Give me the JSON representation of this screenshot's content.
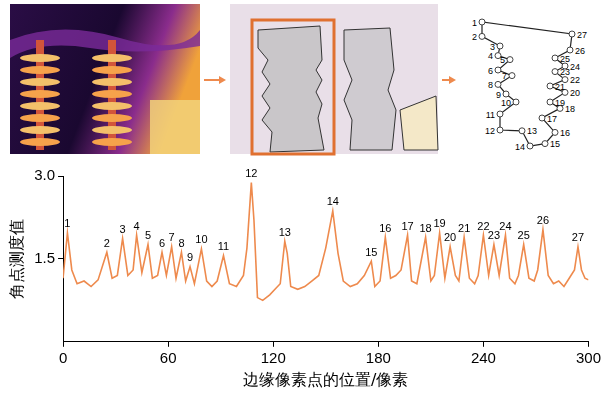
{
  "chart_data": {
    "type": "line",
    "x_label": "边缘像素点的位置/像素",
    "y_label": "角点测度值",
    "color": "#ee8a4d",
    "grid": false,
    "xlim": [
      0,
      300
    ],
    "xticks": [
      0,
      60,
      120,
      180,
      240,
      300
    ],
    "ylim": [
      0,
      3
    ],
    "yticks": [
      1.5,
      {
        "value": 3,
        "label": "3.0"
      }
    ],
    "x": [
      0,
      2.5,
      5,
      8,
      12,
      16,
      20,
      25,
      28,
      31,
      34,
      37,
      40,
      42,
      45,
      48.5,
      51,
      54,
      56.5,
      59,
      62,
      64.5,
      67.6,
      70,
      72.5,
      75,
      79,
      82,
      85,
      88,
      91.6,
      95,
      99,
      103,
      105,
      107.5,
      109,
      111,
      114,
      118,
      121,
      124,
      126.6,
      128,
      130,
      134,
      138,
      142,
      146,
      150,
      154,
      157,
      160,
      164,
      168,
      172,
      176,
      178,
      181,
      184,
      187,
      190,
      193,
      196.7,
      199,
      202,
      207,
      210,
      212,
      215,
      218,
      221,
      224,
      226,
      229,
      232,
      235,
      237,
      240,
      243,
      246,
      249,
      252.6,
      255,
      258,
      260,
      263,
      266,
      269,
      271,
      274,
      277,
      280,
      283,
      286,
      289,
      292,
      294,
      296,
      298,
      300
    ],
    "values": [
      1.15,
      1.97,
      1.3,
      1.05,
      1.1,
      1.0,
      1.12,
      1.62,
      1.15,
      1.2,
      1.87,
      1.2,
      1.3,
      1.93,
      1.25,
      1.76,
      1.15,
      1.2,
      1.62,
      1.2,
      1.72,
      1.15,
      1.62,
      1.1,
      1.36,
      1.05,
      1.68,
      1.1,
      1.0,
      1.1,
      1.56,
      1.05,
      1.0,
      1.2,
      1.7,
      2.88,
      2.2,
      0.8,
      0.75,
      0.85,
      0.95,
      1.05,
      1.82,
      1.6,
      1.0,
      0.95,
      1.0,
      1.1,
      1.2,
      1.7,
      2.37,
      1.6,
      1.1,
      1.0,
      1.05,
      1.2,
      1.46,
      1.0,
      1.1,
      1.89,
      1.15,
      1.2,
      1.3,
      1.93,
      1.1,
      1.05,
      1.89,
      1.1,
      1.2,
      1.97,
      1.15,
      1.72,
      1.2,
      1.1,
      1.89,
      1.15,
      1.05,
      1.2,
      1.93,
      1.2,
      1.76,
      1.2,
      1.93,
      1.15,
      1.05,
      1.2,
      1.76,
      1.15,
      1.1,
      1.3,
      2.03,
      1.2,
      1.05,
      1.1,
      1.0,
      1.15,
      1.3,
      1.72,
      1.3,
      1.15,
      1.12
    ],
    "annotations": [
      {
        "text": "1",
        "x": 2.5,
        "y": 1.97
      },
      {
        "text": "2",
        "x": 25,
        "y": 1.62
      },
      {
        "text": "3",
        "x": 34,
        "y": 1.87
      },
      {
        "text": "4",
        "x": 42,
        "y": 1.93
      },
      {
        "text": "5",
        "x": 48.5,
        "y": 1.76
      },
      {
        "text": "6",
        "x": 56.5,
        "y": 1.62
      },
      {
        "text": "7",
        "x": 62,
        "y": 1.72
      },
      {
        "text": "8",
        "x": 67.6,
        "y": 1.62
      },
      {
        "text": "9",
        "x": 72.5,
        "y": 1.36
      },
      {
        "text": "10",
        "x": 79,
        "y": 1.68
      },
      {
        "text": "11",
        "x": 91.6,
        "y": 1.56
      },
      {
        "text": "12",
        "x": 107.5,
        "y": 2.88
      },
      {
        "text": "13",
        "x": 126.6,
        "y": 1.82
      },
      {
        "text": "14",
        "x": 154,
        "y": 2.37
      },
      {
        "text": "15",
        "x": 176,
        "y": 1.46
      },
      {
        "text": "16",
        "x": 184,
        "y": 1.89
      },
      {
        "text": "17",
        "x": 196.7,
        "y": 1.93
      },
      {
        "text": "18",
        "x": 207,
        "y": 1.89
      },
      {
        "text": "19",
        "x": 215,
        "y": 1.97
      },
      {
        "text": "20",
        "x": 221,
        "y": 1.72
      },
      {
        "text": "21",
        "x": 229,
        "y": 1.89
      },
      {
        "text": "22",
        "x": 240,
        "y": 1.93
      },
      {
        "text": "23",
        "x": 246,
        "y": 1.76
      },
      {
        "text": "24",
        "x": 252.6,
        "y": 1.93
      },
      {
        "text": "25",
        "x": 263,
        "y": 1.76
      },
      {
        "text": "26",
        "x": 274,
        "y": 2.03
      },
      {
        "text": "27",
        "x": 294,
        "y": 1.72
      }
    ]
  },
  "figure": {
    "contour_labels": [
      "1",
      "2",
      "3",
      "4",
      "5",
      "6",
      "7",
      "8",
      "9",
      "10",
      "11",
      "12",
      "13",
      "14",
      "15",
      "16",
      "17",
      "18",
      "19",
      "20",
      "21",
      "22",
      "23",
      "24",
      "25",
      "26",
      "27"
    ]
  }
}
